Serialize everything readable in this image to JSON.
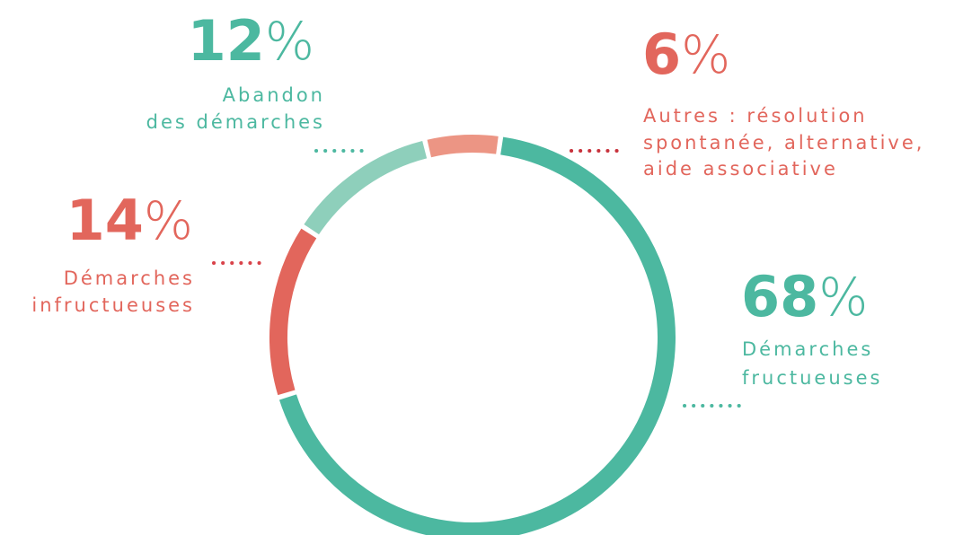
{
  "chart_data": {
    "type": "donut",
    "categories": [
      [
        "Démarches",
        "fructueuses"
      ],
      [
        "Démarches",
        "infructueuses"
      ],
      [
        "Abandon",
        "des démarches"
      ],
      [
        "Autres : résolution",
        "spontanée, alternative,",
        "aide associative"
      ]
    ],
    "values": [
      68,
      14,
      12,
      6
    ],
    "value_labels": [
      "68%",
      "14%",
      "12%",
      "6%"
    ],
    "colors": [
      "#4cb8a0",
      "#e2665c",
      "#8ecfbb",
      "#ec9584"
    ]
  }
}
